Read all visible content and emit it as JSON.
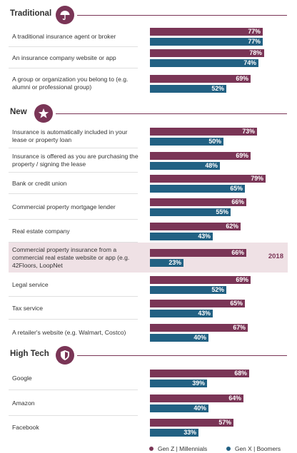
{
  "legend": [
    {
      "label": "Gen Z | Millennials",
      "color": "#7a3556"
    },
    {
      "label": "Gen X | Boomers",
      "color": "#226183"
    }
  ],
  "annotation": "2018",
  "chart_data": {
    "type": "bar",
    "orientation": "horizontal",
    "xlim": [
      0,
      100
    ],
    "unit": "%",
    "series": [
      {
        "name": "Gen Z | Millennials",
        "color": "#7a3556"
      },
      {
        "name": "Gen X | Boomers",
        "color": "#226183"
      }
    ],
    "sections": [
      {
        "title": "Traditional",
        "icon": "umbrella-icon",
        "rows": [
          {
            "label": "A traditional insurance agent or broker",
            "values": [
              77,
              77
            ]
          },
          {
            "label": "An insurance company website or app",
            "values": [
              78,
              74
            ]
          },
          {
            "label": "A group or organization you belong to (e.g. alumni or professional group)",
            "values": [
              69,
              52
            ]
          }
        ]
      },
      {
        "title": "New",
        "icon": "star-icon",
        "rows": [
          {
            "label": "Insurance is automatically included in your lease or property loan",
            "values": [
              73,
              50
            ]
          },
          {
            "label": "Insurance is offered as you are purchasing the property / signing the lease",
            "values": [
              69,
              48
            ]
          },
          {
            "label": "Bank or credit union",
            "values": [
              79,
              65
            ]
          },
          {
            "label": "Commercial property mortgage lender",
            "values": [
              66,
              55
            ]
          },
          {
            "label": "Real estate company",
            "values": [
              62,
              43
            ]
          },
          {
            "label": "Commercial property insurance from a commercial real estate website or app (e.g. 42Floors, LoopNet",
            "values": [
              66,
              23
            ],
            "highlight": true,
            "tag": "2018"
          },
          {
            "label": "Legal service",
            "values": [
              69,
              52
            ]
          },
          {
            "label": "Tax service",
            "values": [
              65,
              43
            ]
          },
          {
            "label": "A retailer's website (e.g. Walmart, Costco)",
            "values": [
              67,
              40
            ]
          }
        ]
      },
      {
        "title": "High Tech",
        "icon": "shield-icon",
        "rows": [
          {
            "label": "Google",
            "values": [
              68,
              39
            ]
          },
          {
            "label": "Amazon",
            "values": [
              64,
              40
            ]
          },
          {
            "label": "Facebook",
            "values": [
              57,
              33
            ]
          }
        ]
      }
    ]
  }
}
